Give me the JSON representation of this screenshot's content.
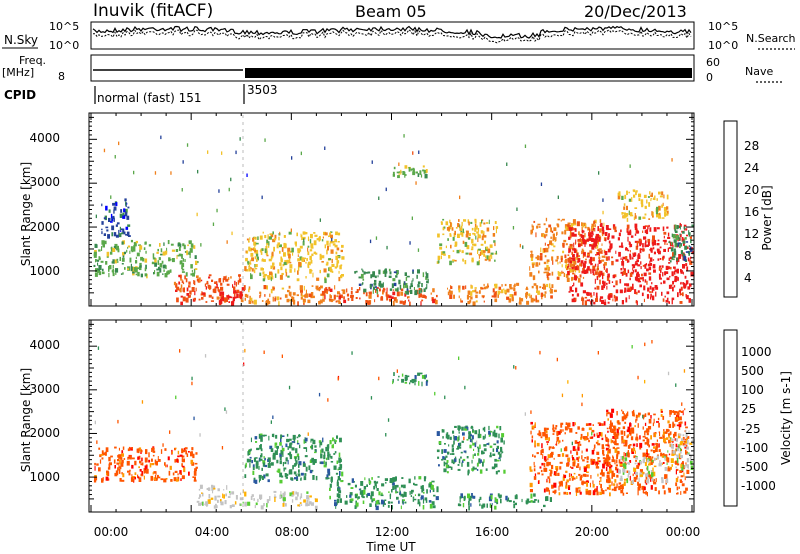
{
  "header": {
    "station": "Inuvik (fitACF)",
    "beam": "Beam 05",
    "date": "20/Dec/2013"
  },
  "params": {
    "nsky_label": "N.Sky",
    "nsearch_label": "N.Search",
    "noise_ticks_left": [
      "10^5",
      "10^0"
    ],
    "noise_ticks_right": [
      "10^5",
      "10^0"
    ],
    "freq_label_1": "Freq.",
    "freq_label_2": "[MHz]",
    "freq_ticks": [
      "8"
    ],
    "nave_label": "Nave",
    "nave_ticks": [
      "60",
      "0"
    ],
    "cpid_label": "CPID",
    "cpid_segments": [
      {
        "label": "normal (fast) 151",
        "start_hour": 0,
        "end_hour": 6.1
      },
      {
        "label": "3503",
        "start_hour": 6.1,
        "end_hour": 24
      }
    ]
  },
  "x_axis": {
    "label": "Time UT",
    "ticks": [
      "00:00",
      "04:00",
      "08:00",
      "12:00",
      "16:00",
      "20:00",
      "00:00"
    ]
  },
  "colors": {
    "power": [
      "#0000ff",
      "#23409a",
      "#37884f",
      "#5aa84a",
      "#f2c22a",
      "#f0801c",
      "#f05012",
      "#ee1a1a"
    ],
    "velocity": [
      "#ff0000",
      "#ff5500",
      "#ff9900",
      "#ffb000",
      "#c8c8c8",
      "#55cc33",
      "#2f8f55",
      "#2a57a0",
      "#1a32a8"
    ],
    "velocity_gray": "#c3c3c3"
  },
  "chart_data": [
    {
      "type": "heatmap",
      "title": "Power",
      "xlabel": "Time UT",
      "ylabel": "Slant Range [km]",
      "xlim": [
        0,
        24
      ],
      "ylim": [
        200,
        4600
      ],
      "y_ticks": [
        "1000",
        "2000",
        "3000",
        "4000"
      ],
      "colorbar": {
        "label": "Power [dB]",
        "range": [
          0,
          32
        ],
        "ticks": [
          "4",
          "8",
          "12",
          "16",
          "20",
          "24",
          "28"
        ]
      },
      "regions": [
        {
          "x": [
            0.1,
            4.2
          ],
          "y": [
            900,
            1700
          ],
          "value": 12
        },
        {
          "x": [
            0.4,
            1.5
          ],
          "y": [
            1800,
            2700
          ],
          "value": 6
        },
        {
          "x": [
            3.3,
            6.1
          ],
          "y": [
            250,
            900
          ],
          "value": 24
        },
        {
          "x": [
            5.1,
            6.0
          ],
          "y": [
            250,
            500
          ],
          "value": 28
        },
        {
          "x": [
            6.1,
            10.0
          ],
          "y": [
            800,
            1900
          ],
          "value": 18
        },
        {
          "x": [
            6.1,
            10.0
          ],
          "y": [
            250,
            650
          ],
          "value": 20
        },
        {
          "x": [
            9.0,
            13.8
          ],
          "y": [
            250,
            600
          ],
          "value": 26
        },
        {
          "x": [
            10.5,
            13.5
          ],
          "y": [
            500,
            1050
          ],
          "value": 10
        },
        {
          "x": [
            13.8,
            16.2
          ],
          "y": [
            1200,
            2200
          ],
          "value": 16
        },
        {
          "x": [
            14.2,
            18.5
          ],
          "y": [
            250,
            700
          ],
          "value": 22
        },
        {
          "x": [
            12.0,
            13.5
          ],
          "y": [
            3200,
            3450
          ],
          "value": 12
        },
        {
          "x": [
            17.5,
            20.5
          ],
          "y": [
            800,
            2200
          ],
          "value": 22
        },
        {
          "x": [
            19.0,
            24.0
          ],
          "y": [
            250,
            2100
          ],
          "value": 28
        },
        {
          "x": [
            21.0,
            23.0
          ],
          "y": [
            2200,
            2900
          ],
          "value": 18
        },
        {
          "x": [
            23.0,
            24.0
          ],
          "y": [
            1200,
            2100
          ],
          "value": 10
        }
      ]
    },
    {
      "type": "heatmap",
      "title": "Velocity",
      "xlabel": "Time UT",
      "ylabel": "Slant Range [km]",
      "xlim": [
        0,
        24
      ],
      "ylim": [
        200,
        4600
      ],
      "y_ticks": [
        "1000",
        "2000",
        "3000",
        "4000"
      ],
      "colorbar": {
        "label": "Velocity [m s-1]",
        "ticks": [
          "-1000",
          "-500",
          "-100",
          "-25",
          "25",
          "100",
          "500",
          "1000"
        ]
      },
      "regions": [
        {
          "x": [
            0.1,
            4.2
          ],
          "y": [
            900,
            1700
          ],
          "value": -300
        },
        {
          "x": [
            4.2,
            6.1
          ],
          "y": [
            300,
            800
          ],
          "value": 0
        },
        {
          "x": [
            6.1,
            10.0
          ],
          "y": [
            900,
            2000
          ],
          "value": 200
        },
        {
          "x": [
            6.1,
            9.0
          ],
          "y": [
            300,
            650
          ],
          "value": 0
        },
        {
          "x": [
            9.5,
            13.8
          ],
          "y": [
            300,
            1000
          ],
          "value": 150
        },
        {
          "x": [
            13.8,
            16.5
          ],
          "y": [
            1100,
            2200
          ],
          "value": 300
        },
        {
          "x": [
            14.5,
            18.5
          ],
          "y": [
            300,
            600
          ],
          "value": 150
        },
        {
          "x": [
            12.0,
            13.5
          ],
          "y": [
            3200,
            3450
          ],
          "value": 150
        },
        {
          "x": [
            17.5,
            21.0
          ],
          "y": [
            600,
            2300
          ],
          "value": -300
        },
        {
          "x": [
            20.5,
            23.8
          ],
          "y": [
            600,
            2600
          ],
          "value": -200
        },
        {
          "x": [
            21.0,
            23.0
          ],
          "y": [
            900,
            1500
          ],
          "value": 0
        },
        {
          "x": [
            23.0,
            24.0
          ],
          "y": [
            1200,
            2100
          ],
          "value": 0
        }
      ]
    }
  ]
}
